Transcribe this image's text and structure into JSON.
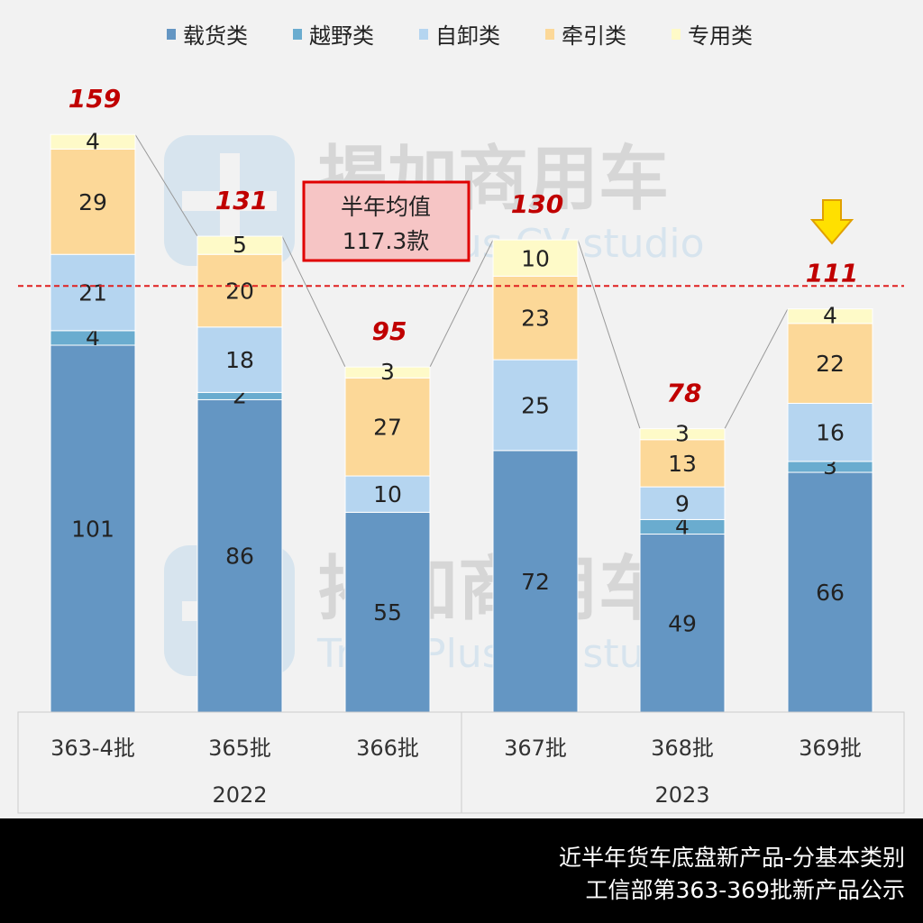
{
  "chart_data": {
    "type": "bar",
    "stacked": true,
    "categories": [
      "363-4批",
      "365批",
      "366批",
      "367批",
      "368批",
      "369批"
    ],
    "groups": [
      {
        "label": "2022",
        "categories": [
          "363-4批",
          "365批",
          "366批"
        ]
      },
      {
        "label": "2023",
        "categories": [
          "367批",
          "368批",
          "369批"
        ]
      }
    ],
    "series": [
      {
        "name": "载货类",
        "color": "#6496c3",
        "values": [
          101,
          86,
          55,
          72,
          49,
          66
        ]
      },
      {
        "name": "越野类",
        "color": "#6aaccf",
        "values": [
          4,
          2,
          0,
          0,
          4,
          3
        ]
      },
      {
        "name": "自卸类",
        "color": "#b5d5f0",
        "values": [
          21,
          18,
          10,
          25,
          9,
          16
        ]
      },
      {
        "name": "牵引类",
        "color": "#fcd898",
        "values": [
          29,
          20,
          27,
          23,
          13,
          22
        ]
      },
      {
        "name": "专用类",
        "color": "#fefac8",
        "values": [
          4,
          5,
          3,
          10,
          3,
          4
        ]
      }
    ],
    "totals": [
      159,
      131,
      95,
      130,
      78,
      111
    ],
    "average": {
      "value": 117.3,
      "label_line1": "半年均值",
      "label_line2": "117.3款",
      "color": "#e02020"
    },
    "highlight_arrow_category": "369批",
    "legend_position": "top",
    "grid": false
  },
  "watermark": {
    "cn": "揭加商用车",
    "en": "TruckPlus CV studio"
  },
  "footer": {
    "line1": "近半年货车底盘新产品-分基本类别",
    "line2": "工信部第363-369批新产品公示"
  }
}
